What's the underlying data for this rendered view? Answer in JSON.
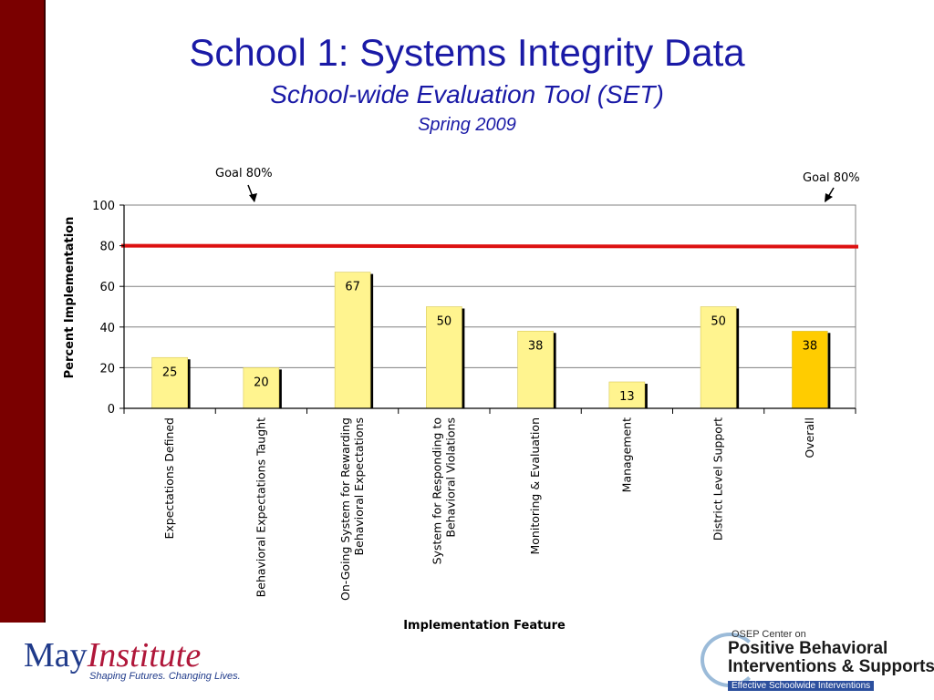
{
  "header": {
    "title": "School 1: Systems Integrity Data",
    "subtitle": "School-wide Evaluation Tool (SET)",
    "date": "Spring 2009"
  },
  "annotations": {
    "goal_left": "Goal 80%",
    "goal_right": "Goal 80%"
  },
  "chart_data": {
    "type": "bar",
    "categories": [
      "Expectations Defined",
      "Behavioral Expectations Taught",
      "On-Going System for Rewarding Behavioral Expectations",
      "System for Responding to Behavioral Violations",
      "Monitoring & Evaluation",
      "Management",
      "District Level Support",
      "Overall"
    ],
    "category_lines": [
      [
        "Expectations Defined"
      ],
      [
        "Behavioral Expectations Taught"
      ],
      [
        "On-Going System for Rewarding",
        "Behavioral Expectations"
      ],
      [
        "System for Responding to",
        "Behavioral Violations"
      ],
      [
        "Monitoring & Evaluation"
      ],
      [
        "Management"
      ],
      [
        "District Level Support"
      ],
      [
        "Overall"
      ]
    ],
    "values": [
      25,
      20,
      67,
      50,
      38,
      13,
      50,
      38
    ],
    "data_labels": [
      "25",
      "20",
      "67",
      "50",
      "38",
      "13",
      "50",
      "38"
    ],
    "xlabel": "Implementation Feature",
    "ylabel": "Percent Implementation",
    "ylim": [
      0,
      100
    ],
    "yticks": [
      0,
      20,
      40,
      60,
      80,
      100
    ],
    "ytick_labels": [
      "0",
      "20",
      "40",
      "60",
      "80",
      "100"
    ],
    "goal_line": 80,
    "grid": true,
    "legend": "none",
    "colors": {
      "bar": "#fff48f",
      "highlight_bar": "#ffcc00",
      "highlight_index": 7,
      "goal_line": "#dd1111",
      "grid": "#808080",
      "bar_shadow": "#000000"
    }
  },
  "logos": {
    "may_may": "May",
    "may_institute": "Institute",
    "may_tagline": "Shaping Futures. Changing Lives.",
    "osep_top": "OSEP Center on",
    "osep_line1": "Positive Behavioral",
    "osep_line2": "Interventions & Supports",
    "osep_bottom": "Effective Schoolwide Interventions"
  }
}
